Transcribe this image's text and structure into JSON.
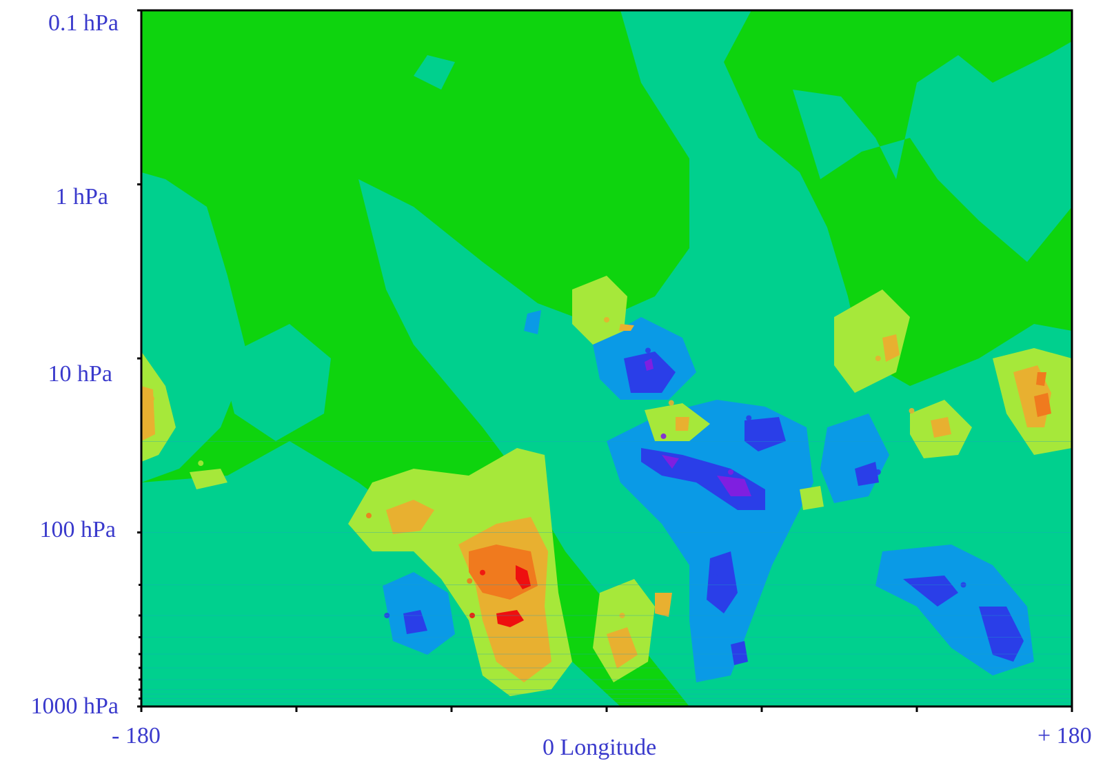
{
  "chart_data": {
    "type": "heatmap",
    "title": "",
    "xlabel": "Longitude",
    "ylabel": "",
    "x_ticks": [
      {
        "value": -180,
        "label": "- 180"
      },
      {
        "value": 0,
        "label": "0"
      },
      {
        "value": 180,
        "label": "+ 180"
      }
    ],
    "y_ticks": [
      {
        "value": 0.1,
        "label": "0.1 hPa"
      },
      {
        "value": 1,
        "label": "1 hPa"
      },
      {
        "value": 10,
        "label": "10 hPa"
      },
      {
        "value": 100,
        "label": "100 hPa"
      },
      {
        "value": 1000,
        "label": "1000 hPa"
      }
    ],
    "xlim": [
      -180,
      180
    ],
    "ylim": [
      0.1,
      1000
    ],
    "y_scale": "log",
    "y_direction": "increasing-down",
    "levels": [
      "purple",
      "blue",
      "light-blue",
      "teal",
      "green",
      "yellow-green",
      "orange",
      "dark-orange",
      "red"
    ],
    "colors": {
      "purple": "#7f1fe0",
      "blue": "#2a3ee8",
      "light_blue": "#0a9ae6",
      "teal": "#00d08e",
      "green": "#0ed40e",
      "yellow_green": "#a6e83a",
      "orange": "#e8b030",
      "dark_orange": "#f07a1e",
      "red": "#ee0f0f",
      "axis_label": "#3a3acc"
    },
    "features": [
      {
        "lon": -176,
        "p": 17,
        "level": "orange"
      },
      {
        "lon": -157,
        "p": 40,
        "level": "yellow-green"
      },
      {
        "lon": -92,
        "p": 80,
        "level": "dark-orange"
      },
      {
        "lon": -83,
        "p": 250,
        "level": "light-blue"
      },
      {
        "lon": -53,
        "p": 190,
        "level": "dark-orange"
      },
      {
        "lon": -48,
        "p": 170,
        "level": "red"
      },
      {
        "lon": -52,
        "p": 300,
        "level": "red"
      },
      {
        "lon": -85,
        "p": 300,
        "level": "blue"
      },
      {
        "lon": 0,
        "p": 6,
        "level": "orange"
      },
      {
        "lon": 16,
        "p": 9,
        "level": "blue"
      },
      {
        "lon": 25,
        "p": 18,
        "level": "orange"
      },
      {
        "lon": 22,
        "p": 28,
        "level": "purple"
      },
      {
        "lon": 48,
        "p": 45,
        "level": "purple"
      },
      {
        "lon": 55,
        "p": 22,
        "level": "blue"
      },
      {
        "lon": 42,
        "p": 180,
        "level": "blue"
      },
      {
        "lon": 6,
        "p": 300,
        "level": "orange"
      },
      {
        "lon": 105,
        "p": 10,
        "level": "orange"
      },
      {
        "lon": 118,
        "p": 20,
        "level": "orange"
      },
      {
        "lon": 105,
        "p": 45,
        "level": "blue"
      },
      {
        "lon": 165,
        "p": 15,
        "level": "orange"
      },
      {
        "lon": 150,
        "p": 300,
        "level": "blue"
      },
      {
        "lon": 138,
        "p": 200,
        "level": "blue"
      }
    ]
  }
}
